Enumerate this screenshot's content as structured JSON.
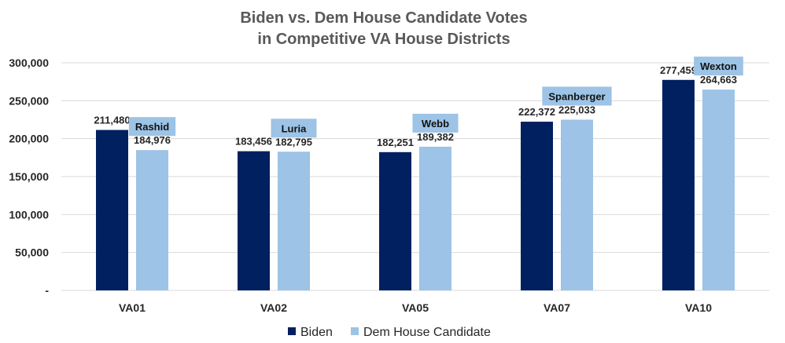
{
  "chart_data": {
    "type": "bar",
    "title_lines": [
      "Biden vs. Dem House Candidate Votes",
      "in Competitive VA House Districts"
    ],
    "categories": [
      "VA01",
      "VA02",
      "VA05",
      "VA07",
      "VA10"
    ],
    "series": [
      {
        "name": "Biden",
        "color": "#002060",
        "values": [
          211480,
          183456,
          182251,
          222372,
          277459
        ],
        "labels": [
          "211,480",
          "183,456",
          "182,251",
          "222,372",
          "277,459"
        ]
      },
      {
        "name": "Dem House Candidate",
        "color": "#9DC3E6",
        "values": [
          184976,
          182795,
          189382,
          225033,
          264663
        ],
        "labels": [
          "184,976",
          "182,795",
          "189,382",
          "225,033",
          "264,663"
        ]
      }
    ],
    "candidates": [
      "Rashid",
      "Luria",
      "Webb",
      "Spanberger",
      "Wexton"
    ],
    "callout_color": "#9DC3E6",
    "ylim": [
      0,
      300000
    ],
    "yticks": [
      0,
      50000,
      100000,
      150000,
      200000,
      250000,
      300000
    ],
    "ytick_labels": [
      "-",
      "50,000",
      "100,000",
      "150,000",
      "200,000",
      "250,000",
      "300,000"
    ],
    "grid": true,
    "gridline_color": "#d9d9d9",
    "legend_position": "bottom"
  }
}
